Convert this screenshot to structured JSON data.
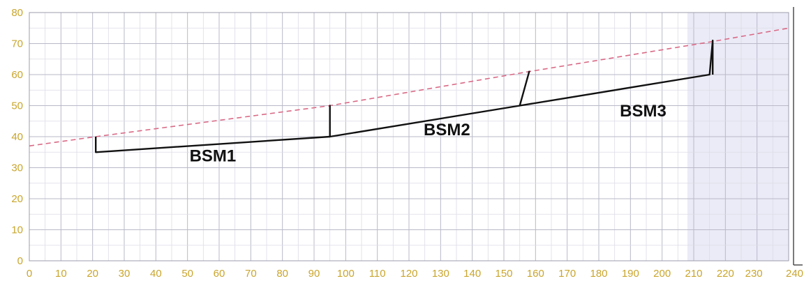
{
  "chart_data": {
    "type": "line",
    "title": "",
    "xlabel": "",
    "ylabel": "",
    "xlim": [
      0,
      240
    ],
    "ylim": [
      0,
      80
    ],
    "x_ticks": [
      "0",
      "10",
      "20",
      "30",
      "40",
      "50",
      "60",
      "70",
      "80",
      "90",
      "100",
      "110",
      "120",
      "130",
      "140",
      "150",
      "160",
      "170",
      "180",
      "190",
      "200",
      "210",
      "220",
      "230",
      "240"
    ],
    "y_ticks": [
      "0",
      "10",
      "20",
      "30",
      "40",
      "50",
      "60",
      "70",
      "80"
    ],
    "grid": true,
    "shaded_region": {
      "x": [
        208,
        240
      ],
      "color": "#ebebf7"
    },
    "series": [
      {
        "style": "dashed",
        "color": "#d96a86",
        "x": [
          0,
          21,
          95,
          158,
          215,
          240
        ],
        "y": [
          37,
          40,
          50,
          61,
          70.5,
          75
        ]
      },
      {
        "style": "solid",
        "color": "#111111",
        "x": [
          21,
          21,
          95,
          95,
          95,
          155,
          158,
          155,
          215,
          216,
          216
        ],
        "y": [
          40,
          35,
          40,
          50,
          40,
          50,
          61,
          50,
          60,
          71,
          60
        ]
      }
    ],
    "annotations": [
      {
        "text": "BSM1",
        "x": 58,
        "y": 32
      },
      {
        "text": "BSM2",
        "x": 132,
        "y": 40.5
      },
      {
        "text": "BSM3",
        "x": 194,
        "y": 46.5
      }
    ]
  }
}
